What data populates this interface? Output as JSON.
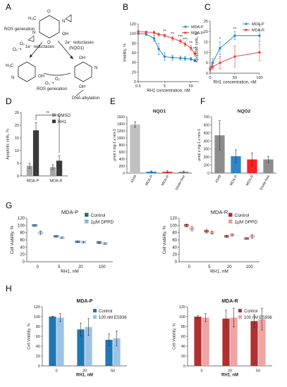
{
  "panel_labels": [
    "A",
    "B",
    "C",
    "D",
    "E",
    "F",
    "G",
    "H"
  ],
  "scheme": {
    "labels": {
      "ros_generation_left": "ROS generation",
      "ros_generation_bottom": "ROS generation",
      "o2_top": "O₂",
      "o2_minus_top": "O₂⁻•",
      "one_e_reductases": "1e⁻ reductases",
      "two_e_reductases": "2e⁻ reductases",
      "nqo1": "(NQO1)",
      "o2_bottom": "O₂",
      "o2_minus_bottom": "O₂⁻•",
      "dna_alkylation": "DNA alkylation",
      "oh": "OH",
      "o": "O",
      "h3c": "H₃C",
      "n": "N"
    }
  },
  "chart_data": [
    {
      "panel": "B",
      "type": "line",
      "xlabel": "RH1 concentration, nM",
      "ylabel": "Viability, %",
      "x_ticks": [
        "0.5",
        "5",
        "50"
      ],
      "y_ticks": [
        "0",
        "20",
        "40",
        "60",
        "80",
        "100",
        "120"
      ],
      "xscale": "log",
      "xlim": [
        0.5,
        100
      ],
      "ylim": [
        0,
        120
      ],
      "legend": "top-right",
      "x": [
        0.5,
        1,
        2,
        3,
        5,
        10,
        20,
        30,
        50,
        70
      ],
      "series": [
        {
          "name": "MDA-P",
          "color": "#2e86c8",
          "values": [
            100,
            99,
            90,
            68,
            52,
            50,
            49,
            48,
            47,
            44
          ],
          "errors": [
            2,
            3,
            6,
            12,
            8,
            5,
            4,
            4,
            3,
            3
          ]
        },
        {
          "name": "MDA-R",
          "color": "#e0463c",
          "values": [
            104,
            103,
            102,
            98,
            96,
            90,
            84,
            78,
            70,
            58
          ],
          "errors": [
            2,
            2,
            3,
            3,
            3,
            4,
            4,
            4,
            5,
            5
          ]
        }
      ],
      "annotations": [
        "**",
        "**",
        "***",
        "***",
        "**",
        "**"
      ]
    },
    {
      "panel": "C",
      "type": "line",
      "xlabel": "RH1 concentration, nM",
      "ylabel": "Apoptotic cells, %",
      "x_ticks": [
        "0",
        "50",
        "100"
      ],
      "y_ticks": [
        "0",
        "5",
        "10",
        "15",
        "20",
        "25"
      ],
      "xlim": [
        0,
        100
      ],
      "ylim": [
        0,
        25
      ],
      "legend": "top-right",
      "x": [
        0,
        5,
        20,
        50,
        100
      ],
      "series": [
        {
          "name": "MDA-P",
          "color": "#2e86c8",
          "values": [
            2,
            5,
            12,
            18,
            18
          ],
          "errors": [
            1,
            2,
            3,
            2,
            3
          ]
        },
        {
          "name": "MDA-R",
          "color": "#e0463c",
          "values": [
            2,
            3,
            5,
            8,
            10
          ],
          "errors": [
            1,
            1,
            3,
            5,
            4
          ]
        }
      ],
      "annotations": [
        "*",
        "**",
        "*"
      ]
    },
    {
      "panel": "D",
      "type": "bar",
      "ylabel": "Apoptotic cells, %",
      "y_ticks": [
        "0",
        "5",
        "10",
        "15",
        "20",
        "25"
      ],
      "ylim": [
        0,
        25
      ],
      "categories": [
        "MDA-P",
        "MDA-R"
      ],
      "legend": "top-right",
      "series": [
        {
          "name": "DMSO",
          "color": "#a6a6a6",
          "values": [
            4,
            3.5
          ],
          "errors": [
            1,
            1
          ]
        },
        {
          "name": "RH1",
          "color": "#3a3a3a",
          "values": [
            18,
            6
          ],
          "errors": [
            3,
            2
          ]
        }
      ],
      "annotations": [
        "**"
      ]
    },
    {
      "panel": "E",
      "type": "bar",
      "title": "NQO1",
      "ylabel": "µmol x mg-1 x min-1",
      "y_ticks": [
        "0",
        "200",
        "400",
        "600",
        "800",
        "1000",
        "1200",
        "1400",
        "1600"
      ],
      "ylim": [
        0,
        1600
      ],
      "categories": [
        "A549",
        "MDA-P",
        "MDA-R",
        "lysate-free"
      ],
      "values": [
        1380,
        40,
        40,
        40
      ],
      "errors": [
        80,
        20,
        30,
        20
      ],
      "colors": [
        "#c0c0c0",
        "#2e86c8",
        "#e0463c",
        "#8c8c8c"
      ]
    },
    {
      "panel": "F",
      "type": "bar",
      "title": "NQO2",
      "ylabel": "µmol x mg-1 x min-1",
      "y_ticks": [
        "0",
        "100",
        "200",
        "300",
        "400",
        "500",
        "600",
        "700"
      ],
      "ylim": [
        0,
        700
      ],
      "categories": [
        "A549",
        "MDA-P",
        "MDA-R",
        "lysate-free"
      ],
      "values": [
        470,
        210,
        170,
        170
      ],
      "errors": [
        180,
        80,
        80,
        40
      ],
      "colors": [
        "#8c8c8c",
        "#2e86c8",
        "#ff2020",
        "#8c8c8c"
      ]
    },
    {
      "panel": "G1",
      "type": "bar",
      "title": "MDA-P",
      "xlabel": "RH1, nM",
      "ylabel": "Cell viability, %",
      "y_ticks": [
        "0",
        "20",
        "40",
        "60",
        "80",
        "100",
        "120"
      ],
      "ylim": [
        0,
        120
      ],
      "categories": [
        "0",
        "5",
        "20",
        "100"
      ],
      "legend": "top-right",
      "series": [
        {
          "name": "Control",
          "color": "#21699a",
          "values": [
            100,
            70,
            55,
            53
          ],
          "errors": [
            2,
            2,
            2,
            3
          ]
        },
        {
          "name": "1µM DPPD",
          "color": "#8fb8dc",
          "values": [
            80,
            66,
            54,
            50
          ],
          "errors": [
            5,
            2,
            2,
            2
          ]
        }
      ]
    },
    {
      "panel": "G2",
      "type": "bar",
      "title": "MDA-R",
      "xlabel": "RH1, nM",
      "ylabel": "Cell viability, %",
      "y_ticks": [
        "0",
        "20",
        "40",
        "60",
        "80",
        "100",
        "120"
      ],
      "ylim": [
        0,
        120
      ],
      "categories": [
        "0",
        "5",
        "20",
        "100"
      ],
      "legend": "top-right",
      "series": [
        {
          "name": "Control",
          "color": "#a43534",
          "values": [
            100,
            84,
            70,
            64
          ],
          "errors": [
            4,
            5,
            3,
            2
          ]
        },
        {
          "name": "1µM DPPD",
          "color": "#e69a9a",
          "values": [
            91,
            80,
            74,
            70
          ],
          "errors": [
            6,
            4,
            3,
            5
          ]
        }
      ]
    },
    {
      "panel": "H1",
      "type": "bar",
      "title": "MDA-P",
      "xlabel": "RH1, nM",
      "ylabel": "Cell Viability, %",
      "y_ticks": [
        "0",
        "20",
        "40",
        "60",
        "80",
        "100",
        "120"
      ],
      "ylim": [
        0,
        120
      ],
      "categories": [
        "0",
        "20",
        "50"
      ],
      "legend": "top-right",
      "series": [
        {
          "name": "Control",
          "color": "#1f77b4",
          "values": [
            100,
            74,
            53
          ],
          "errors": [
            1,
            13,
            12
          ]
        },
        {
          "name": "100 nM ES936",
          "color": "#9cc3e5",
          "values": [
            98,
            79,
            56
          ],
          "errors": [
            8,
            17,
            15
          ]
        }
      ]
    },
    {
      "panel": "H2",
      "type": "bar",
      "title": "MDA-R",
      "xlabel": "RH1, nM",
      "ylabel": "Cell Viability, %",
      "y_ticks": [
        "0",
        "20",
        "40",
        "60",
        "80",
        "100",
        "120"
      ],
      "ylim": [
        0,
        120
      ],
      "categories": [
        "0",
        "20",
        "50"
      ],
      "legend": "top-right",
      "series": [
        {
          "name": "Control",
          "color": "#b22f2f",
          "values": [
            100,
            96,
            91
          ],
          "errors": [
            2,
            17,
            13
          ]
        },
        {
          "name": "100 nM ES936",
          "color": "#f0a4a4",
          "values": [
            98,
            98,
            95
          ],
          "errors": [
            8,
            19,
            22
          ]
        }
      ]
    }
  ]
}
